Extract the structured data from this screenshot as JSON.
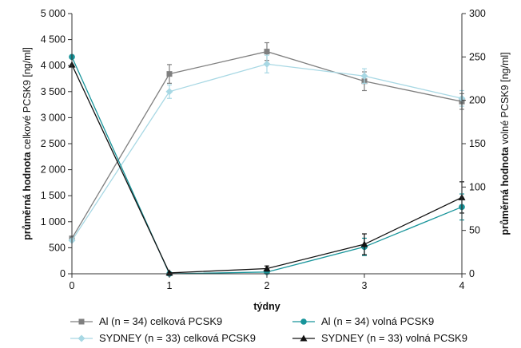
{
  "chart_data": {
    "type": "line",
    "x": [
      0,
      1,
      2,
      3,
      4
    ],
    "xticks": [
      "0",
      "1",
      "2",
      "3",
      "4"
    ],
    "xlabel": "týdny",
    "xlim": [
      0,
      4
    ],
    "y_left": {
      "label_bold": "průměrná hodnota",
      "label_normal": " celkové PCSK9 [ng/ml]",
      "ylim": [
        0,
        5000
      ],
      "ticks": [
        "0",
        "500",
        "1 000",
        "1 500",
        "2 000",
        "2 500",
        "3 000",
        "3 500",
        "4 000",
        "4 500",
        "5 000"
      ],
      "tick_values": [
        0,
        500,
        1000,
        1500,
        2000,
        2500,
        3000,
        3500,
        4000,
        4500,
        5000
      ]
    },
    "y_right": {
      "label_bold": "průměrná hodnota",
      "label_normal": " volné PCSK9 [ng/ml]",
      "ylim": [
        0,
        300
      ],
      "ticks": [
        "0",
        "50",
        "100",
        "150",
        "200",
        "250",
        "300"
      ],
      "tick_values": [
        0,
        50,
        100,
        150,
        200,
        250,
        300
      ]
    },
    "grid": false,
    "legend_position": "bottom",
    "series": [
      {
        "name": "Al (n = 34) celková PCSK9",
        "axis": "left",
        "color": "#7f7f7f",
        "marker": "square",
        "values": [
          680,
          3840,
          4270,
          3700,
          3310
        ],
        "errors": [
          0,
          180,
          170,
          180,
          150
        ]
      },
      {
        "name": "SYDNEY (n = 33) celková PCSK9",
        "axis": "left",
        "color": "#a8d8e4",
        "marker": "diamond",
        "values": [
          640,
          3500,
          4030,
          3800,
          3370
        ],
        "errors": [
          0,
          130,
          170,
          140,
          150
        ]
      },
      {
        "name": "Al (n = 34) volná PCSK9",
        "axis": "right",
        "color": "#17949a",
        "marker": "circle",
        "values": [
          250,
          0,
          2,
          31,
          77
        ],
        "errors": [
          0,
          0,
          0,
          10,
          15
        ]
      },
      {
        "name": "SYDNEY (n = 33) volná PCSK9",
        "axis": "right",
        "color": "#111111",
        "marker": "triangle",
        "values": [
          241,
          1,
          6,
          34,
          88
        ],
        "errors": [
          0,
          0,
          3,
          12,
          18
        ]
      }
    ]
  }
}
